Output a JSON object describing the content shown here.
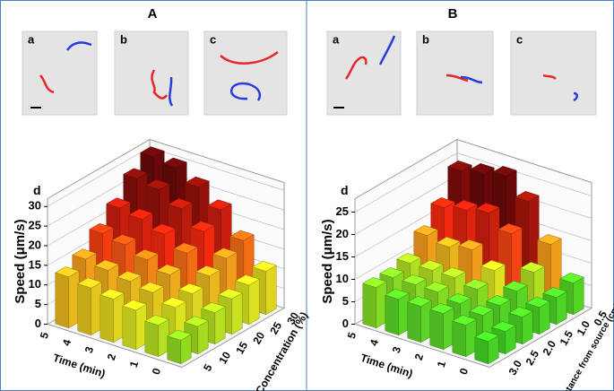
{
  "figure": {
    "panels": [
      {
        "title": "A",
        "image_labels": [
          "a",
          "b",
          "c"
        ]
      },
      {
        "title": "B",
        "image_labels": [
          "a",
          "b",
          "c"
        ]
      }
    ]
  },
  "chart_data": [
    {
      "type": "bar3d",
      "label": "d",
      "x_label": "Time (min)",
      "x_categories": [
        0,
        1,
        2,
        3,
        4,
        5
      ],
      "y_label": "Concentration (%)",
      "y_categories": [
        "5",
        "10",
        "15",
        "20",
        "25",
        "30"
      ],
      "z_label": "Speed (μm/s)",
      "zlim": [
        0,
        32
      ],
      "zticks": [
        0,
        5,
        10,
        15,
        20,
        25,
        30
      ],
      "grid": true,
      "values": [
        [
          6,
          7,
          8,
          9,
          10,
          11
        ],
        [
          8,
          10,
          11,
          13,
          15,
          17
        ],
        [
          10,
          12,
          14,
          17,
          20,
          23
        ],
        [
          11,
          13,
          16,
          20,
          24,
          27
        ],
        [
          12,
          14,
          18,
          22,
          27,
          30
        ],
        [
          13,
          15,
          19,
          23,
          28,
          31
        ]
      ],
      "colorscale": [
        [
          0,
          "#22d822"
        ],
        [
          10,
          "#e6ef22"
        ],
        [
          15,
          "#ffa41c"
        ],
        [
          20,
          "#ff2a10"
        ],
        [
          30,
          "#6e0808"
        ]
      ]
    },
    {
      "type": "bar3d",
      "label": "d",
      "x_label": "Time (min)",
      "x_categories": [
        0,
        1,
        2,
        3,
        4,
        5
      ],
      "y_label": "Distance from source (cm)",
      "y_categories": [
        "3.0",
        "2.5",
        "2.0",
        "1.5",
        "1.0",
        "0.5"
      ],
      "z_label": "Speed (μm/s)",
      "zlim": [
        0,
        28
      ],
      "zticks": [
        0,
        5,
        10,
        15,
        20,
        25
      ],
      "grid": true,
      "values": [
        [
          5,
          5,
          6,
          6,
          6,
          7
        ],
        [
          7,
          7,
          7,
          8,
          10,
          14
        ],
        [
          8,
          8,
          9,
          11,
          17,
          22
        ],
        [
          8,
          9,
          10,
          14,
          20,
          26
        ],
        [
          8,
          9,
          10,
          13,
          19,
          25
        ],
        [
          9,
          9,
          10,
          14,
          18,
          24
        ]
      ],
      "colorscale": [
        [
          0,
          "#22d822"
        ],
        [
          8,
          "#5fe028"
        ],
        [
          11,
          "#e6ef22"
        ],
        [
          14,
          "#ffa41c"
        ],
        [
          18,
          "#ff2a10"
        ],
        [
          25,
          "#6e0808"
        ]
      ]
    }
  ]
}
